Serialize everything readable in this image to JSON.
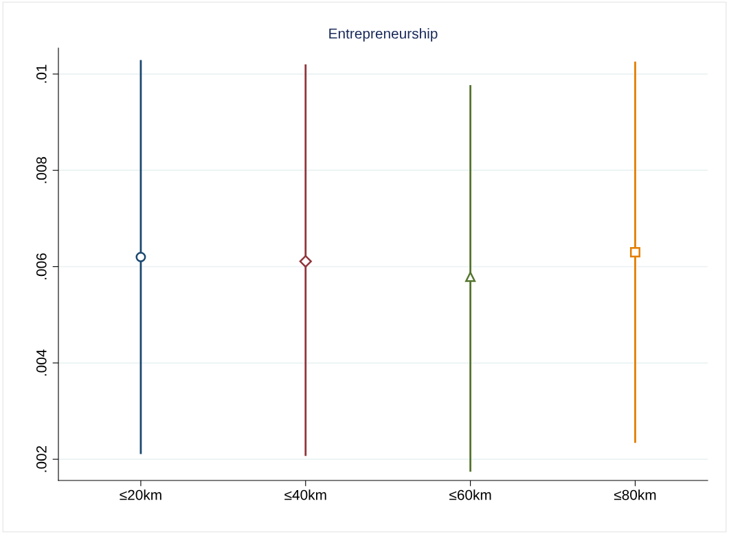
{
  "chart_data": {
    "type": "scatter",
    "title": "Entrepreneurship",
    "categories": [
      "≤20km",
      "≤40km",
      "≤60km",
      "≤80km"
    ],
    "series": [
      {
        "x": [
          "≤20km"
        ],
        "values": [
          0.0062
        ],
        "errors": [
          [
            0.00211,
            0.01029
          ]
        ],
        "color": "#1a476f",
        "marker": "circle"
      },
      {
        "x": [
          "≤40km"
        ],
        "values": [
          0.00611
        ],
        "errors": [
          [
            0.00207,
            0.0102
          ]
        ],
        "color": "#90353b",
        "marker": "diamond"
      },
      {
        "x": [
          "≤60km"
        ],
        "values": [
          0.00579
        ],
        "errors": [
          [
            0.00174,
            0.00977
          ]
        ],
        "color": "#55752f",
        "marker": "triangle"
      },
      {
        "x": [
          "≤80km"
        ],
        "values": [
          0.0063
        ],
        "errors": [
          [
            0.00234,
            0.01026
          ]
        ],
        "color": "#e37e00",
        "marker": "square"
      }
    ],
    "ylim": [
      0.00156,
      0.01054
    ],
    "yticks": [
      {
        "value": 0.002,
        "label": ".002"
      },
      {
        "value": 0.004,
        "label": ".004"
      },
      {
        "value": 0.006,
        "label": ".006"
      },
      {
        "value": 0.008,
        "label": ".008"
      },
      {
        "value": 0.01,
        "label": ".01"
      }
    ],
    "grid": "y"
  }
}
